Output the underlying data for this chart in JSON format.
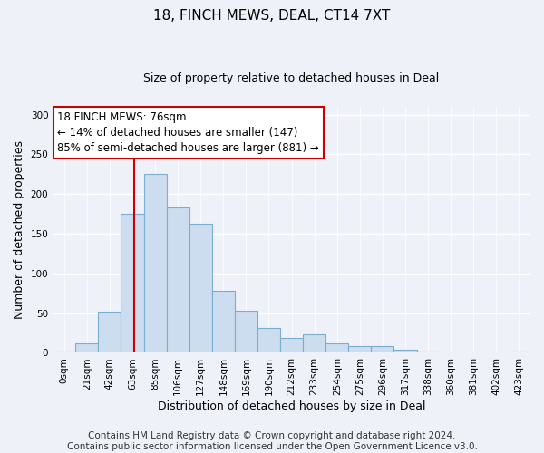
{
  "title": "18, FINCH MEWS, DEAL, CT14 7XT",
  "subtitle": "Size of property relative to detached houses in Deal",
  "xlabel": "Distribution of detached houses by size in Deal",
  "ylabel": "Number of detached properties",
  "bar_color": "#ccddf0",
  "bar_edge_color": "#7aaed0",
  "background_color": "#eef2f8",
  "categories": [
    "0sqm",
    "21sqm",
    "42sqm",
    "63sqm",
    "85sqm",
    "106sqm",
    "127sqm",
    "148sqm",
    "169sqm",
    "190sqm",
    "212sqm",
    "233sqm",
    "254sqm",
    "275sqm",
    "296sqm",
    "317sqm",
    "338sqm",
    "360sqm",
    "381sqm",
    "402sqm",
    "423sqm"
  ],
  "values": [
    2,
    12,
    52,
    175,
    225,
    183,
    163,
    78,
    53,
    31,
    19,
    23,
    12,
    8,
    8,
    4,
    2,
    1,
    1,
    1,
    2
  ],
  "ylim": [
    0,
    310
  ],
  "yticks": [
    0,
    50,
    100,
    150,
    200,
    250,
    300
  ],
  "annotation_text": "18 FINCH MEWS: 76sqm\n← 14% of detached houses are smaller (147)\n85% of semi-detached houses are larger (881) →",
  "annotation_box_color": "white",
  "annotation_box_edge_color": "#cc0000",
  "red_line_color": "#cc0000",
  "footer_text": "Contains HM Land Registry data © Crown copyright and database right 2024.\nContains public sector information licensed under the Open Government Licence v3.0.",
  "title_fontsize": 11,
  "subtitle_fontsize": 9,
  "annot_fontsize": 8.5,
  "footer_fontsize": 7.5,
  "xlabel_fontsize": 9,
  "ylabel_fontsize": 9,
  "tick_fontsize": 7.5
}
